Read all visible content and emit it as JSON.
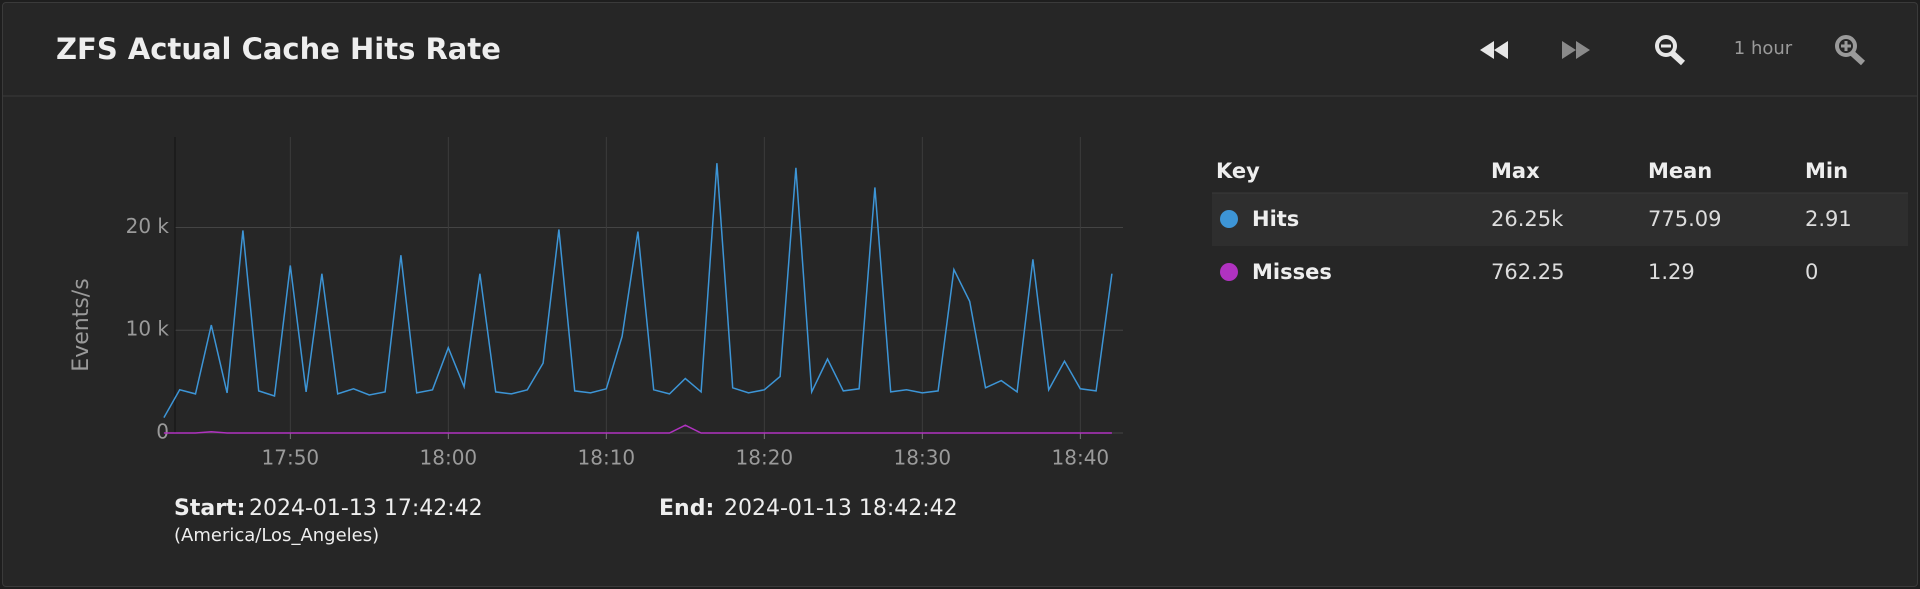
{
  "header": {
    "title": "ZFS Actual Cache Hits Rate",
    "range_label": "1 hour"
  },
  "chart_data": {
    "type": "line",
    "y_label": "Events/s",
    "x": [
      "17:42",
      "17:43",
      "17:44",
      "17:45",
      "17:46",
      "17:47",
      "17:48",
      "17:49",
      "17:50",
      "17:51",
      "17:52",
      "17:53",
      "17:54",
      "17:55",
      "17:56",
      "17:57",
      "17:58",
      "17:59",
      "18:00",
      "18:01",
      "18:02",
      "18:03",
      "18:04",
      "18:05",
      "18:06",
      "18:07",
      "18:08",
      "18:09",
      "18:10",
      "18:11",
      "18:12",
      "18:13",
      "18:14",
      "18:15",
      "18:16",
      "18:17",
      "18:18",
      "18:19",
      "18:20",
      "18:21",
      "18:22",
      "18:23",
      "18:24",
      "18:25",
      "18:26",
      "18:27",
      "18:28",
      "18:29",
      "18:30",
      "18:31",
      "18:32",
      "18:33",
      "18:34",
      "18:35",
      "18:36",
      "18:37",
      "18:38",
      "18:39",
      "18:40",
      "18:41",
      "18:42"
    ],
    "series": [
      {
        "name": "Hits",
        "color": "#3d95d6",
        "values": [
          1500,
          4200,
          3800,
          10500,
          3900,
          19700,
          4100,
          3600,
          16300,
          4000,
          15500,
          3800,
          4300,
          3700,
          4000,
          17300,
          3900,
          4200,
          8300,
          4500,
          15500,
          4000,
          3800,
          4200,
          6800,
          19800,
          4100,
          3900,
          4300,
          9400,
          19600,
          4200,
          3800,
          5300,
          4000,
          26250,
          4400,
          3900,
          4200,
          5500,
          25800,
          4000,
          7200,
          4100,
          4300,
          23900,
          4000,
          4200,
          3900,
          4100,
          15900,
          12800,
          4400,
          5100,
          4000,
          16900,
          4200,
          7000,
          4300,
          4100,
          15500
        ]
      },
      {
        "name": "Misses",
        "color": "#b032c0",
        "values": [
          0,
          0,
          0,
          120,
          0,
          0,
          0,
          0,
          0,
          0,
          0,
          0,
          0,
          0,
          0,
          0,
          0,
          0,
          0,
          0,
          0,
          0,
          0,
          0,
          0,
          0,
          0,
          0,
          0,
          0,
          0,
          0,
          0,
          762.25,
          0,
          0,
          0,
          0,
          0,
          0,
          0,
          0,
          0,
          0,
          0,
          0,
          0,
          0,
          0,
          0,
          0,
          0,
          0,
          0,
          0,
          0,
          0,
          0,
          0,
          0,
          0
        ]
      }
    ],
    "xlim": [
      "17:42:42",
      "18:42:42"
    ],
    "xticks": [
      "17:50",
      "18:00",
      "18:10",
      "18:20",
      "18:30",
      "18:40"
    ],
    "ylim": [
      0,
      28800
    ],
    "yticks": [
      0,
      {
        "value": 10000,
        "label": "10 k"
      },
      {
        "value": 20000,
        "label": "20 k"
      }
    ],
    "grid": true
  },
  "legend_table": {
    "columns": [
      "Key",
      "Max",
      "Mean",
      "Min"
    ],
    "rows": [
      [
        "26.25k",
        "775.09",
        "2.91"
      ],
      [
        "762.25",
        "1.29",
        "0"
      ]
    ]
  },
  "footer": {
    "start_label": "Start:",
    "start": "2024-01-13 17:42:42",
    "timezone": "(America/Los_Angeles)",
    "end_label": "End:",
    "end": "2024-01-13 18:42:42"
  }
}
